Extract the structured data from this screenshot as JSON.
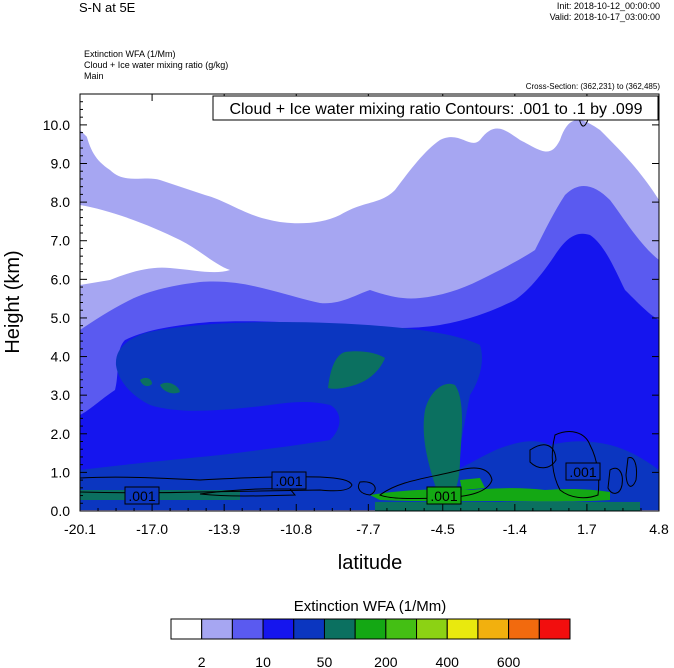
{
  "header": {
    "title": "S-N at 5E",
    "init": "Init: 2018-10-12_00:00:00",
    "valid": "Valid: 2018-10-17_03:00:00",
    "field1": "Extinction WFA   (1/Mm)",
    "field2": "Cloud + Ice water mixing ratio   (g/kg)",
    "field3": "Main",
    "cross_section": "Cross-Section: (362,231) to (362,485)"
  },
  "chart_data": {
    "type": "heatmap",
    "title": "S-N at 5E",
    "contour_label": "Cloud + Ice water mixing ratio Contours: .001 to .1 by .099",
    "xlabel": "latitude",
    "ylabel": "Height (km)",
    "x_ticks": [
      "-20.1",
      "-17.0",
      "-13.9",
      "-10.8",
      "-7.7",
      "-4.5",
      "-1.4",
      "1.7",
      "4.8"
    ],
    "xlim": [
      -20.1,
      4.8
    ],
    "y_ticks": [
      "0.0",
      "1.0",
      "2.0",
      "3.0",
      "4.0",
      "5.0",
      "6.0",
      "7.0",
      "8.0",
      "9.0",
      "10.0"
    ],
    "ylim": [
      0,
      10.8
    ],
    "contour_value_labels": [
      ".001",
      ".001",
      ".001",
      ".001"
    ],
    "colorbar": {
      "title": "Extinction WFA  (1/Mm)",
      "colors": [
        "#ffffff",
        "#a6a6f2",
        "#5a5af0",
        "#1515ee",
        "#0b36c0",
        "#0b7060",
        "#14a814",
        "#44bf14",
        "#8cd214",
        "#e9e90e",
        "#f2b00e",
        "#f26a0e",
        "#f20e0e"
      ],
      "tick_labels": [
        "2",
        "10",
        "50",
        "200",
        "400",
        "600"
      ]
    }
  }
}
